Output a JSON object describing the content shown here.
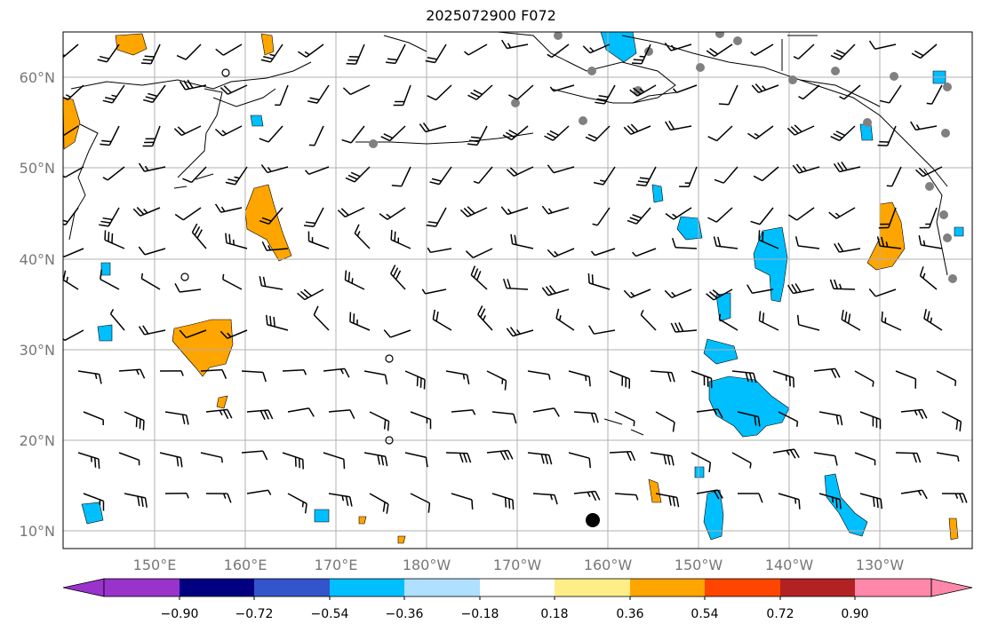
{
  "title": "2025072900 F072",
  "lat_labels": [
    "60°N",
    "50°N",
    "40°N",
    "30°N",
    "20°N",
    "10°N"
  ],
  "lon_labels": [
    "150°E",
    "160°E",
    "170°E",
    "180°W",
    "170°W",
    "160°W",
    "150°W",
    "140°W",
    "130°W"
  ],
  "colorbar": {
    "ticks": [
      "−0.90",
      "−0.72",
      "−0.54",
      "−0.36",
      "−0.18",
      "0.18",
      "0.36",
      "0.54",
      "0.72",
      "0.90"
    ],
    "colors": [
      "#9933cc",
      "#000080",
      "#3355cc",
      "#00bfff",
      "#b0e0ff",
      "#ffffff",
      "#ffee88",
      "#ffa500",
      "#ff4500",
      "#b22222",
      "#ff88aa"
    ]
  },
  "colors": {
    "positive": "#ffa500",
    "negative": "#00bfff",
    "land_line": "#000000",
    "grid": "#b0b0b0",
    "station": "#808080"
  }
}
